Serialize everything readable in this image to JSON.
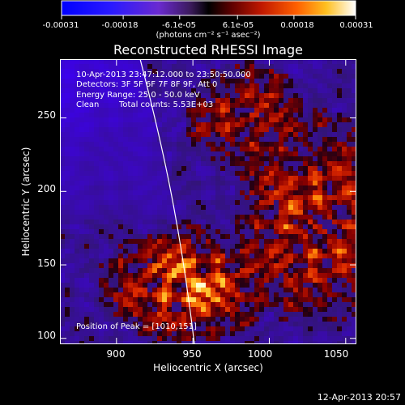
{
  "colorbar": {
    "ticks": [
      "-0.00031",
      "-0.00018",
      "-6.1e-05",
      "6.1e-05",
      "0.00018",
      "0.00031"
    ],
    "tick_values": [
      -0.00031,
      -0.00018,
      -6.1e-05,
      6.1e-05,
      0.00018,
      0.00031
    ],
    "range": [
      -0.00031,
      0.00031
    ],
    "units_label": "(photons cm⁻² s⁻¹ asec⁻²)"
  },
  "title": "Reconstructed RHESSI Image",
  "info": {
    "time_range": "10-Apr-2013 23:47:12.000 to 23:50:50.000",
    "detectors": "Detectors: 3F 5F 6F 7F 8F 9F, Att 0",
    "energy_range": "Energy Range: 25.0 - 50.0 keV",
    "algorithm": "Clean",
    "total_counts": "Total counts: 5.53E+03"
  },
  "peak_label": "Position of Peak = [1010,151]",
  "axes": {
    "xlabel": "Heliocentric X (arcsec)",
    "ylabel": "Heliocentric Y (arcsec)",
    "xlim": [
      863,
      1057
    ],
    "ylim": [
      96,
      290
    ],
    "xticks": [
      "900",
      "950",
      "1000",
      "1050"
    ],
    "xtick_values": [
      900,
      950,
      1000,
      1050
    ],
    "yticks": [
      "100",
      "150",
      "200",
      "250"
    ],
    "ytick_values": [
      100,
      150,
      200,
      250
    ]
  },
  "timestamp": "12-Apr-2013 20:57",
  "colors": {
    "background": "#000000",
    "text": "#ffffff",
    "limb": "#ffffff"
  }
}
